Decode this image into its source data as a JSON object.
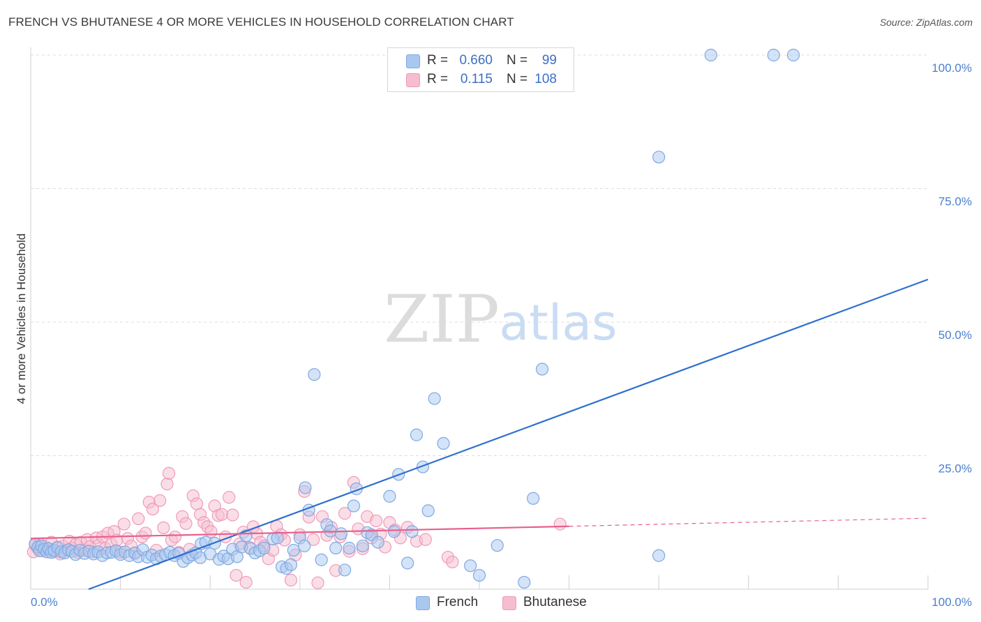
{
  "title": "FRENCH VS BHUTANESE 4 OR MORE VEHICLES IN HOUSEHOLD CORRELATION CHART",
  "source": "Source: ZipAtlas.com",
  "watermark": {
    "zip": "ZIP",
    "atlas": "atlas"
  },
  "legend": {
    "french": {
      "r_label": "R =",
      "r_value": "0.660",
      "n_label": "N =",
      "n_value": "99"
    },
    "bhutanese": {
      "r_label": "R =",
      "r_value": "0.115",
      "n_label": "N =",
      "n_value": "108"
    }
  },
  "bottom_legend": {
    "french": "French",
    "bhutanese": "Bhutanese"
  },
  "colors": {
    "french_fill": "#a9c8f0",
    "french_stroke": "#7ea9e3",
    "french_line": "#2e6fce",
    "bhutanese_fill": "#f6bdd0",
    "bhutanese_stroke": "#f09ab8",
    "bhutanese_line": "#e8608c",
    "axis_label": "#4a7fcf",
    "grid": "#dcdcdc"
  },
  "chart_data": {
    "type": "scatter",
    "title": "FRENCH VS BHUTANESE 4 OR MORE VEHICLES IN HOUSEHOLD CORRELATION CHART",
    "xlabel": "",
    "ylabel": "4 or more Vehicles in Household",
    "xlim": [
      0,
      100
    ],
    "ylim": [
      0,
      100
    ],
    "x_tick_labels": [
      "0.0%",
      "100.0%"
    ],
    "y_ticks": [
      {
        "value": 100,
        "label": "100.0%"
      },
      {
        "value": 75,
        "label": "75.0%"
      },
      {
        "value": 50,
        "label": "50.0%"
      },
      {
        "value": 25,
        "label": "25.0%"
      }
    ],
    "series": [
      {
        "name": "French",
        "r": 0.66,
        "n": 99,
        "trend": {
          "x0": 0,
          "y0": -4.0,
          "x1": 100,
          "y1": 58.0,
          "dashed_from": null
        },
        "points": [
          [
            0.5,
            8.5
          ],
          [
            0.8,
            7.9
          ],
          [
            1.0,
            7.2
          ],
          [
            1.2,
            8.1
          ],
          [
            1.5,
            7.5
          ],
          [
            1.8,
            7.0
          ],
          [
            2.0,
            7.6
          ],
          [
            2.3,
            6.9
          ],
          [
            2.6,
            7.3
          ],
          [
            3.0,
            7.8
          ],
          [
            3.4,
            7.0
          ],
          [
            3.8,
            6.8
          ],
          [
            4.2,
            7.4
          ],
          [
            4.6,
            7.1
          ],
          [
            5.0,
            6.5
          ],
          [
            5.5,
            7.3
          ],
          [
            6.0,
            6.7
          ],
          [
            6.5,
            7.1
          ],
          [
            7.0,
            6.6
          ],
          [
            7.5,
            7.0
          ],
          [
            8.0,
            6.3
          ],
          [
            8.5,
            6.8
          ],
          [
            9.0,
            6.9
          ],
          [
            9.5,
            7.2
          ],
          [
            10.0,
            6.5
          ],
          [
            10.5,
            7.0
          ],
          [
            11.0,
            6.3
          ],
          [
            11.6,
            6.8
          ],
          [
            12.0,
            6.1
          ],
          [
            12.5,
            7.4
          ],
          [
            13.0,
            6.0
          ],
          [
            13.5,
            6.4
          ],
          [
            14.0,
            5.7
          ],
          [
            14.5,
            6.2
          ],
          [
            15.0,
            6.5
          ],
          [
            15.5,
            6.9
          ],
          [
            16.0,
            6.3
          ],
          [
            16.5,
            6.7
          ],
          [
            17.0,
            5.2
          ],
          [
            17.5,
            5.9
          ],
          [
            18.0,
            6.4
          ],
          [
            18.4,
            6.8
          ],
          [
            18.9,
            5.9
          ],
          [
            19.0,
            8.5
          ],
          [
            19.5,
            8.8
          ],
          [
            20.0,
            6.6
          ],
          [
            20.5,
            8.6
          ],
          [
            21.0,
            5.6
          ],
          [
            21.5,
            6.2
          ],
          [
            22.0,
            5.7
          ],
          [
            22.5,
            7.5
          ],
          [
            23.0,
            6.1
          ],
          [
            23.5,
            7.9
          ],
          [
            24.0,
            10.0
          ],
          [
            24.5,
            7.6
          ],
          [
            25.0,
            6.8
          ],
          [
            25.5,
            7.2
          ],
          [
            26.0,
            7.7
          ],
          [
            27.0,
            9.4
          ],
          [
            27.5,
            9.6
          ],
          [
            28.0,
            4.2
          ],
          [
            28.5,
            3.9
          ],
          [
            29.0,
            4.6
          ],
          [
            29.3,
            7.3
          ],
          [
            30.0,
            9.6
          ],
          [
            30.5,
            8.1
          ],
          [
            30.6,
            19.0
          ],
          [
            31.0,
            14.8
          ],
          [
            31.6,
            40.2
          ],
          [
            32.4,
            5.5
          ],
          [
            33.0,
            12.1
          ],
          [
            33.4,
            10.9
          ],
          [
            34.0,
            7.7
          ],
          [
            34.6,
            10.4
          ],
          [
            35.0,
            3.6
          ],
          [
            35.5,
            7.7
          ],
          [
            36.0,
            15.6
          ],
          [
            36.3,
            18.8
          ],
          [
            37.0,
            8.1
          ],
          [
            37.5,
            10.6
          ],
          [
            38.0,
            10.2
          ],
          [
            38.7,
            8.8
          ],
          [
            40.0,
            17.4
          ],
          [
            40.5,
            10.8
          ],
          [
            41.0,
            21.5
          ],
          [
            42.0,
            4.9
          ],
          [
            42.5,
            10.8
          ],
          [
            43.0,
            28.9
          ],
          [
            43.7,
            22.9
          ],
          [
            44.3,
            14.7
          ],
          [
            45.0,
            35.7
          ],
          [
            46.0,
            27.3
          ],
          [
            49.0,
            4.4
          ],
          [
            50.0,
            2.6
          ],
          [
            52.0,
            8.2
          ],
          [
            55.0,
            1.3
          ],
          [
            56.0,
            17.0
          ],
          [
            57.0,
            41.2
          ],
          [
            70.0,
            80.9
          ],
          [
            70.0,
            6.3
          ],
          [
            75.8,
            100.0
          ],
          [
            82.8,
            100.0
          ],
          [
            85.0,
            100.0
          ]
        ]
      },
      {
        "name": "Bhutanese",
        "r": 0.115,
        "n": 108,
        "trend": {
          "x0": 0,
          "y0": 9.5,
          "x1": 100,
          "y1": 13.3,
          "dashed_from": 60
        },
        "points": [
          [
            0.3,
            7.0
          ],
          [
            0.5,
            8.3
          ],
          [
            0.8,
            7.6
          ],
          [
            1.0,
            8.5
          ],
          [
            1.3,
            7.2
          ],
          [
            1.6,
            8.0
          ],
          [
            2.0,
            7.4
          ],
          [
            2.3,
            8.8
          ],
          [
            2.6,
            7.0
          ],
          [
            3.0,
            7.9
          ],
          [
            3.3,
            6.6
          ],
          [
            3.6,
            8.1
          ],
          [
            4.0,
            7.2
          ],
          [
            4.3,
            9.0
          ],
          [
            4.6,
            7.7
          ],
          [
            5.0,
            8.4
          ],
          [
            5.3,
            6.9
          ],
          [
            5.6,
            8.8
          ],
          [
            6.0,
            7.3
          ],
          [
            6.3,
            9.3
          ],
          [
            6.6,
            8.0
          ],
          [
            7.0,
            7.0
          ],
          [
            7.3,
            9.6
          ],
          [
            7.6,
            8.3
          ],
          [
            8.0,
            9.8
          ],
          [
            8.3,
            7.7
          ],
          [
            8.6,
            10.5
          ],
          [
            9.0,
            8.4
          ],
          [
            9.3,
            10.8
          ],
          [
            9.6,
            9.2
          ],
          [
            10.0,
            6.9
          ],
          [
            10.4,
            12.2
          ],
          [
            10.8,
            9.5
          ],
          [
            11.2,
            8.1
          ],
          [
            11.6,
            6.7
          ],
          [
            12.0,
            13.2
          ],
          [
            12.4,
            9.8
          ],
          [
            12.8,
            10.5
          ],
          [
            13.2,
            16.3
          ],
          [
            13.6,
            15.0
          ],
          [
            14.0,
            7.3
          ],
          [
            14.4,
            16.6
          ],
          [
            14.8,
            11.5
          ],
          [
            15.2,
            19.7
          ],
          [
            15.4,
            21.7
          ],
          [
            15.7,
            9.2
          ],
          [
            16.1,
            9.8
          ],
          [
            16.5,
            6.9
          ],
          [
            16.9,
            13.6
          ],
          [
            17.3,
            12.3
          ],
          [
            17.7,
            7.5
          ],
          [
            18.1,
            17.5
          ],
          [
            18.5,
            16.0
          ],
          [
            18.9,
            14.0
          ],
          [
            19.3,
            12.5
          ],
          [
            19.7,
            11.7
          ],
          [
            20.1,
            10.8
          ],
          [
            20.5,
            15.6
          ],
          [
            20.9,
            13.8
          ],
          [
            21.3,
            14.0
          ],
          [
            21.7,
            9.8
          ],
          [
            22.1,
            17.2
          ],
          [
            22.5,
            13.9
          ],
          [
            22.9,
            2.6
          ],
          [
            23.3,
            8.5
          ],
          [
            23.7,
            10.7
          ],
          [
            24.0,
            1.3
          ],
          [
            24.4,
            7.8
          ],
          [
            24.8,
            11.7
          ],
          [
            25.2,
            10.4
          ],
          [
            25.6,
            8.8
          ],
          [
            26.0,
            8.1
          ],
          [
            26.5,
            5.7
          ],
          [
            27.0,
            7.3
          ],
          [
            27.4,
            11.8
          ],
          [
            27.9,
            10.2
          ],
          [
            28.3,
            9.2
          ],
          [
            29.0,
            1.7
          ],
          [
            29.5,
            6.4
          ],
          [
            30.0,
            10.2
          ],
          [
            30.5,
            18.3
          ],
          [
            31.0,
            13.5
          ],
          [
            31.5,
            9.3
          ],
          [
            32.0,
            1.2
          ],
          [
            32.5,
            13.6
          ],
          [
            33.0,
            10.1
          ],
          [
            33.5,
            11.6
          ],
          [
            34.0,
            3.5
          ],
          [
            34.5,
            9.8
          ],
          [
            35.0,
            14.2
          ],
          [
            35.5,
            7.1
          ],
          [
            36.0,
            20.0
          ],
          [
            36.5,
            11.3
          ],
          [
            37.0,
            7.6
          ],
          [
            37.5,
            13.6
          ],
          [
            38.0,
            9.6
          ],
          [
            38.5,
            12.8
          ],
          [
            39.0,
            10.3
          ],
          [
            39.5,
            7.9
          ],
          [
            40.0,
            12.5
          ],
          [
            40.6,
            11.1
          ],
          [
            41.2,
            9.6
          ],
          [
            42.0,
            11.6
          ],
          [
            43.0,
            9.0
          ],
          [
            44.0,
            9.3
          ],
          [
            46.5,
            6.0
          ],
          [
            47.0,
            5.1
          ],
          [
            59.0,
            12.2
          ]
        ]
      }
    ]
  }
}
